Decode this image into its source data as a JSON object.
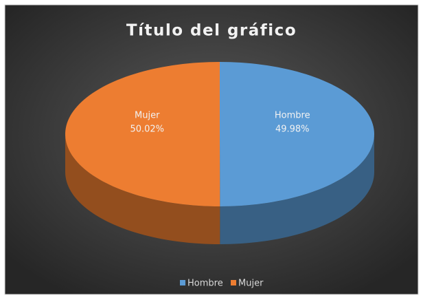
{
  "chart_data": {
    "type": "pie",
    "title": "Título del gráfico",
    "categories": [
      "Hombre",
      "Mujer"
    ],
    "values": [
      49.98,
      50.02
    ],
    "value_labels": [
      "49.98%",
      "50.02%"
    ],
    "colors": [
      "#5b9bd5",
      "#ed7d31"
    ],
    "legend": "bottom"
  }
}
